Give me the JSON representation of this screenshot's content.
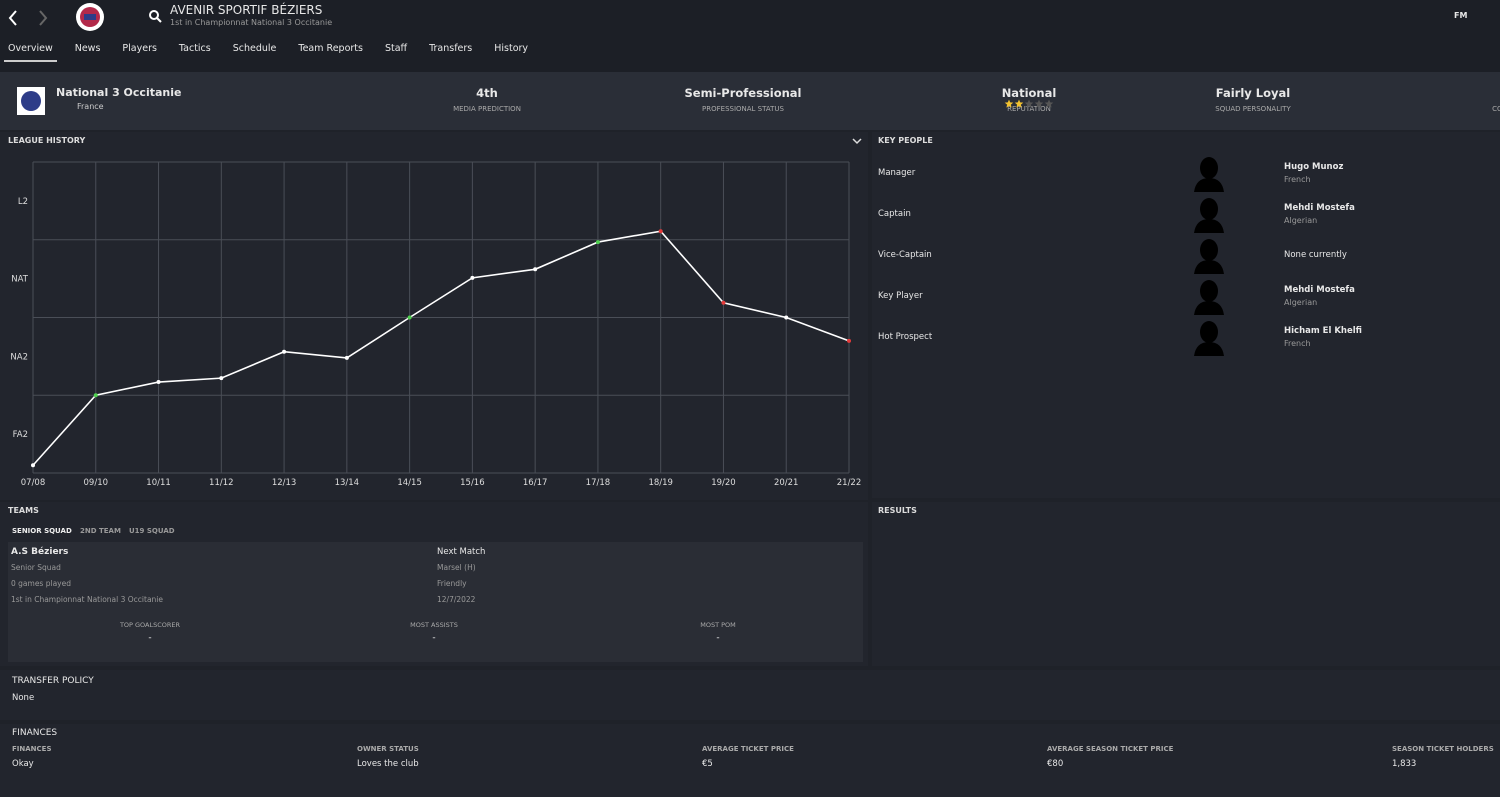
{
  "header": {
    "club": "AVENIR SPORTIF BÉZIERS",
    "subtitle": "1st in Championnat National 3 Occitanie",
    "logo": "FM"
  },
  "nav": [
    "Overview",
    "News",
    "Players",
    "Tactics",
    "Schedule",
    "Team Reports",
    "Staff",
    "Transfers",
    "History"
  ],
  "summary": {
    "league": "National 3 Occitanie",
    "country": "France",
    "items": [
      {
        "value": "4th",
        "label": "MEDIA PREDICTION"
      },
      {
        "value": "Semi-Professional",
        "label": "PROFESSIONAL STATUS"
      },
      {
        "value": "National",
        "label": "REPUTATION"
      },
      {
        "value": "Fairly Loyal",
        "label": "SQUAD PERSONALITY"
      },
      {
        "label": "CON"
      }
    ],
    "reputation_stars": 2,
    "reputation_stars_max": 5
  },
  "chart_data": {
    "type": "line",
    "title": "LEAGUE HISTORY",
    "categories": [
      "07/08",
      "09/10",
      "10/11",
      "11/12",
      "12/13",
      "13/14",
      "14/15",
      "15/16",
      "16/17",
      "17/18",
      "18/19",
      "19/20",
      "20/21",
      "21/22"
    ],
    "values": [
      0.1,
      1.0,
      1.17,
      1.22,
      1.56,
      1.48,
      2.0,
      2.51,
      2.62,
      2.97,
      3.11,
      2.19,
      2.0,
      1.7
    ],
    "point_colors": [
      "#ffffff",
      "#4fd14f",
      "#ffffff",
      "#ffffff",
      "#ffffff",
      "#ffffff",
      "#4fd14f",
      "#ffffff",
      "#ffffff",
      "#4fd14f",
      "#e53b3b",
      "#e53b3b",
      "#ffffff",
      "#e53b3b"
    ],
    "color": "#ffffff",
    "ylim": [
      0,
      4
    ],
    "yticks": [
      {
        "value": 0.5,
        "label": "FA2"
      },
      {
        "value": 1.5,
        "label": "NA2"
      },
      {
        "value": 2.5,
        "label": "NAT"
      },
      {
        "value": 3.5,
        "label": "L2"
      }
    ],
    "ygrid": [
      0,
      1,
      2,
      3,
      4
    ],
    "grid": true
  },
  "key_people": {
    "title": "KEY PEOPLE",
    "rows": [
      {
        "role": "Manager",
        "name": "Hugo Munoz",
        "nationality": "French"
      },
      {
        "role": "Captain",
        "name": "Mehdi Mostefa",
        "nationality": "Algerian"
      },
      {
        "role": "Vice-Captain",
        "name": "None currently"
      },
      {
        "role": "Key Player",
        "name": "Mehdi Mostefa",
        "nationality": "Algerian"
      },
      {
        "role": "Hot Prospect",
        "name": "Hicham El Khelfi",
        "nationality": "French"
      }
    ]
  },
  "teams": {
    "title": "TEAMS",
    "tabs": [
      "SENIOR SQUAD",
      "2ND TEAM",
      "U19 SQUAD"
    ],
    "team": [
      "A.S Béziers",
      "Senior Squad",
      "0 games played",
      "1st in Championnat National 3 Occitanie"
    ],
    "next_match": [
      "Next Match",
      "Marsel (H)",
      "Friendly",
      "12/7/2022"
    ],
    "stats": [
      {
        "label": "TOP GOALSCORER",
        "value": "-"
      },
      {
        "label": "MOST ASSISTS",
        "value": "-"
      },
      {
        "label": "MOST POM",
        "value": "-"
      }
    ]
  },
  "results": {
    "title": "RESULTS"
  },
  "transfer_policy": {
    "title": "TRANSFER POLICY",
    "value": "None"
  },
  "finances": {
    "title": "FINANCES",
    "items": [
      {
        "label": "FINANCES",
        "value": "Okay"
      },
      {
        "label": "OWNER STATUS",
        "value": "Loves the club"
      },
      {
        "label": "AVERAGE TICKET PRICE",
        "value": "€5"
      },
      {
        "label": "AVERAGE SEASON TICKET PRICE",
        "value": "€80"
      },
      {
        "label": "SEASON TICKET HOLDERS",
        "value": "1,833"
      }
    ]
  }
}
